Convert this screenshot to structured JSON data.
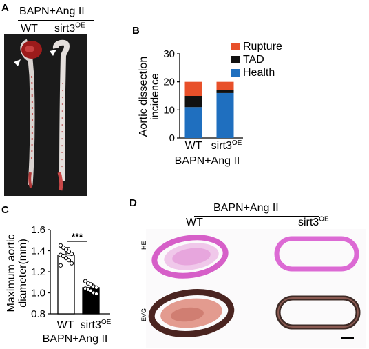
{
  "panels": {
    "a": {
      "label": "A",
      "condition": "BAPN+Ang II",
      "groups": [
        "WT",
        "sirt3",
        "OE"
      ]
    },
    "b": {
      "label": "B",
      "condition": "BAPN+Ang II"
    },
    "c": {
      "label": "C",
      "condition": "BAPN+Ang II",
      "significance": "***"
    },
    "d": {
      "label": "D",
      "condition": "BAPN+Ang II",
      "columns": [
        "WT",
        "sirt3",
        "OE"
      ],
      "rows": [
        "HE",
        "EVG"
      ]
    }
  },
  "chart_data": [
    {
      "id": "B",
      "type": "bar",
      "stacked": true,
      "categories": [
        "WT",
        "sirt3OE"
      ],
      "category_labels": {
        "wt": "WT",
        "sirt3": "sirt3",
        "oe": "OE"
      },
      "ylabel_lines": [
        "Aortic dissection",
        "incidence"
      ],
      "xlabel": "BAPN+Ang II",
      "ylim": [
        0,
        30
      ],
      "yticks": [
        "0",
        "10",
        "20",
        "30"
      ],
      "series": [
        {
          "name": "Health",
          "values": [
            11,
            16
          ],
          "color": "#1f6fbf"
        },
        {
          "name": "TAD",
          "values": [
            4,
            1
          ],
          "color": "#111111"
        },
        {
          "name": "Rupture",
          "values": [
            5,
            3
          ],
          "color": "#e8502a"
        }
      ],
      "legend": "top-right"
    },
    {
      "id": "C",
      "type": "bar",
      "categories": [
        "WT",
        "sirt3OE"
      ],
      "category_labels": {
        "wt": "WT",
        "sirt3": "sirt3",
        "oe": "OE"
      },
      "ylabel_lines": [
        "Maximum aortic",
        "diameter(mm)"
      ],
      "xlabel": "BAPN+Ang II",
      "ylim": [
        0.8,
        1.6
      ],
      "yticks": [
        "0.8",
        "1.0",
        "1.2",
        "1.4",
        "1.6"
      ],
      "means": [
        1.36,
        1.05
      ],
      "sd": [
        0.07,
        0.04
      ],
      "bar_colors": [
        "#ffffff",
        "#000000"
      ],
      "points": [
        [
          1.45,
          1.43,
          1.41,
          1.39,
          1.37,
          1.36,
          1.35,
          1.33,
          1.31,
          1.28,
          1.26
        ],
        [
          1.11,
          1.09,
          1.08,
          1.06,
          1.05,
          1.04,
          1.03,
          1.02,
          1.0,
          0.99
        ]
      ]
    }
  ]
}
